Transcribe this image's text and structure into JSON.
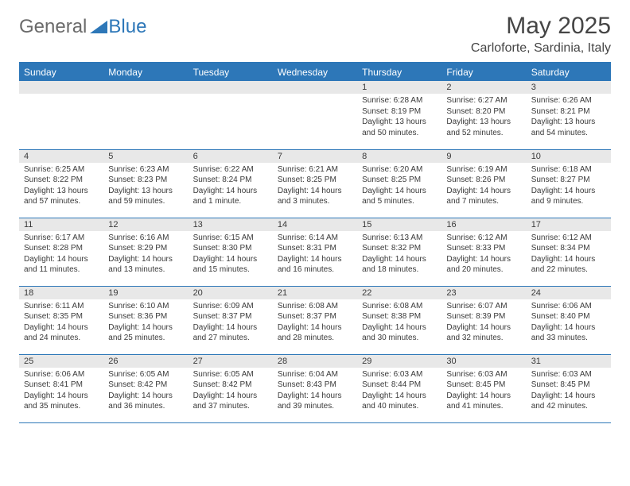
{
  "brand": {
    "general": "General",
    "blue": "Blue"
  },
  "header": {
    "title": "May 2025",
    "location": "Carloforte, Sardinia, Italy"
  },
  "weekdays": [
    "Sunday",
    "Monday",
    "Tuesday",
    "Wednesday",
    "Thursday",
    "Friday",
    "Saturday"
  ],
  "colors": {
    "accent": "#2d77b8",
    "header_bg": "#2d77b8",
    "header_text": "#ffffff",
    "daynum_bg": "#e8e8e8",
    "text": "#3a3a3a",
    "logo_gray": "#6b6b6b"
  },
  "layout": {
    "first_weekday_index": 4,
    "days_in_month": 31
  },
  "days": {
    "1": {
      "sunrise": "6:28 AM",
      "sunset": "8:19 PM",
      "daylight": "13 hours and 50 minutes."
    },
    "2": {
      "sunrise": "6:27 AM",
      "sunset": "8:20 PM",
      "daylight": "13 hours and 52 minutes."
    },
    "3": {
      "sunrise": "6:26 AM",
      "sunset": "8:21 PM",
      "daylight": "13 hours and 54 minutes."
    },
    "4": {
      "sunrise": "6:25 AM",
      "sunset": "8:22 PM",
      "daylight": "13 hours and 57 minutes."
    },
    "5": {
      "sunrise": "6:23 AM",
      "sunset": "8:23 PM",
      "daylight": "13 hours and 59 minutes."
    },
    "6": {
      "sunrise": "6:22 AM",
      "sunset": "8:24 PM",
      "daylight": "14 hours and 1 minute."
    },
    "7": {
      "sunrise": "6:21 AM",
      "sunset": "8:25 PM",
      "daylight": "14 hours and 3 minutes."
    },
    "8": {
      "sunrise": "6:20 AM",
      "sunset": "8:25 PM",
      "daylight": "14 hours and 5 minutes."
    },
    "9": {
      "sunrise": "6:19 AM",
      "sunset": "8:26 PM",
      "daylight": "14 hours and 7 minutes."
    },
    "10": {
      "sunrise": "6:18 AM",
      "sunset": "8:27 PM",
      "daylight": "14 hours and 9 minutes."
    },
    "11": {
      "sunrise": "6:17 AM",
      "sunset": "8:28 PM",
      "daylight": "14 hours and 11 minutes."
    },
    "12": {
      "sunrise": "6:16 AM",
      "sunset": "8:29 PM",
      "daylight": "14 hours and 13 minutes."
    },
    "13": {
      "sunrise": "6:15 AM",
      "sunset": "8:30 PM",
      "daylight": "14 hours and 15 minutes."
    },
    "14": {
      "sunrise": "6:14 AM",
      "sunset": "8:31 PM",
      "daylight": "14 hours and 16 minutes."
    },
    "15": {
      "sunrise": "6:13 AM",
      "sunset": "8:32 PM",
      "daylight": "14 hours and 18 minutes."
    },
    "16": {
      "sunrise": "6:12 AM",
      "sunset": "8:33 PM",
      "daylight": "14 hours and 20 minutes."
    },
    "17": {
      "sunrise": "6:12 AM",
      "sunset": "8:34 PM",
      "daylight": "14 hours and 22 minutes."
    },
    "18": {
      "sunrise": "6:11 AM",
      "sunset": "8:35 PM",
      "daylight": "14 hours and 24 minutes."
    },
    "19": {
      "sunrise": "6:10 AM",
      "sunset": "8:36 PM",
      "daylight": "14 hours and 25 minutes."
    },
    "20": {
      "sunrise": "6:09 AM",
      "sunset": "8:37 PM",
      "daylight": "14 hours and 27 minutes."
    },
    "21": {
      "sunrise": "6:08 AM",
      "sunset": "8:37 PM",
      "daylight": "14 hours and 28 minutes."
    },
    "22": {
      "sunrise": "6:08 AM",
      "sunset": "8:38 PM",
      "daylight": "14 hours and 30 minutes."
    },
    "23": {
      "sunrise": "6:07 AM",
      "sunset": "8:39 PM",
      "daylight": "14 hours and 32 minutes."
    },
    "24": {
      "sunrise": "6:06 AM",
      "sunset": "8:40 PM",
      "daylight": "14 hours and 33 minutes."
    },
    "25": {
      "sunrise": "6:06 AM",
      "sunset": "8:41 PM",
      "daylight": "14 hours and 35 minutes."
    },
    "26": {
      "sunrise": "6:05 AM",
      "sunset": "8:42 PM",
      "daylight": "14 hours and 36 minutes."
    },
    "27": {
      "sunrise": "6:05 AM",
      "sunset": "8:42 PM",
      "daylight": "14 hours and 37 minutes."
    },
    "28": {
      "sunrise": "6:04 AM",
      "sunset": "8:43 PM",
      "daylight": "14 hours and 39 minutes."
    },
    "29": {
      "sunrise": "6:03 AM",
      "sunset": "8:44 PM",
      "daylight": "14 hours and 40 minutes."
    },
    "30": {
      "sunrise": "6:03 AM",
      "sunset": "8:45 PM",
      "daylight": "14 hours and 41 minutes."
    },
    "31": {
      "sunrise": "6:03 AM",
      "sunset": "8:45 PM",
      "daylight": "14 hours and 42 minutes."
    }
  },
  "labels": {
    "sunrise": "Sunrise:",
    "sunset": "Sunset:",
    "daylight": "Daylight:"
  }
}
